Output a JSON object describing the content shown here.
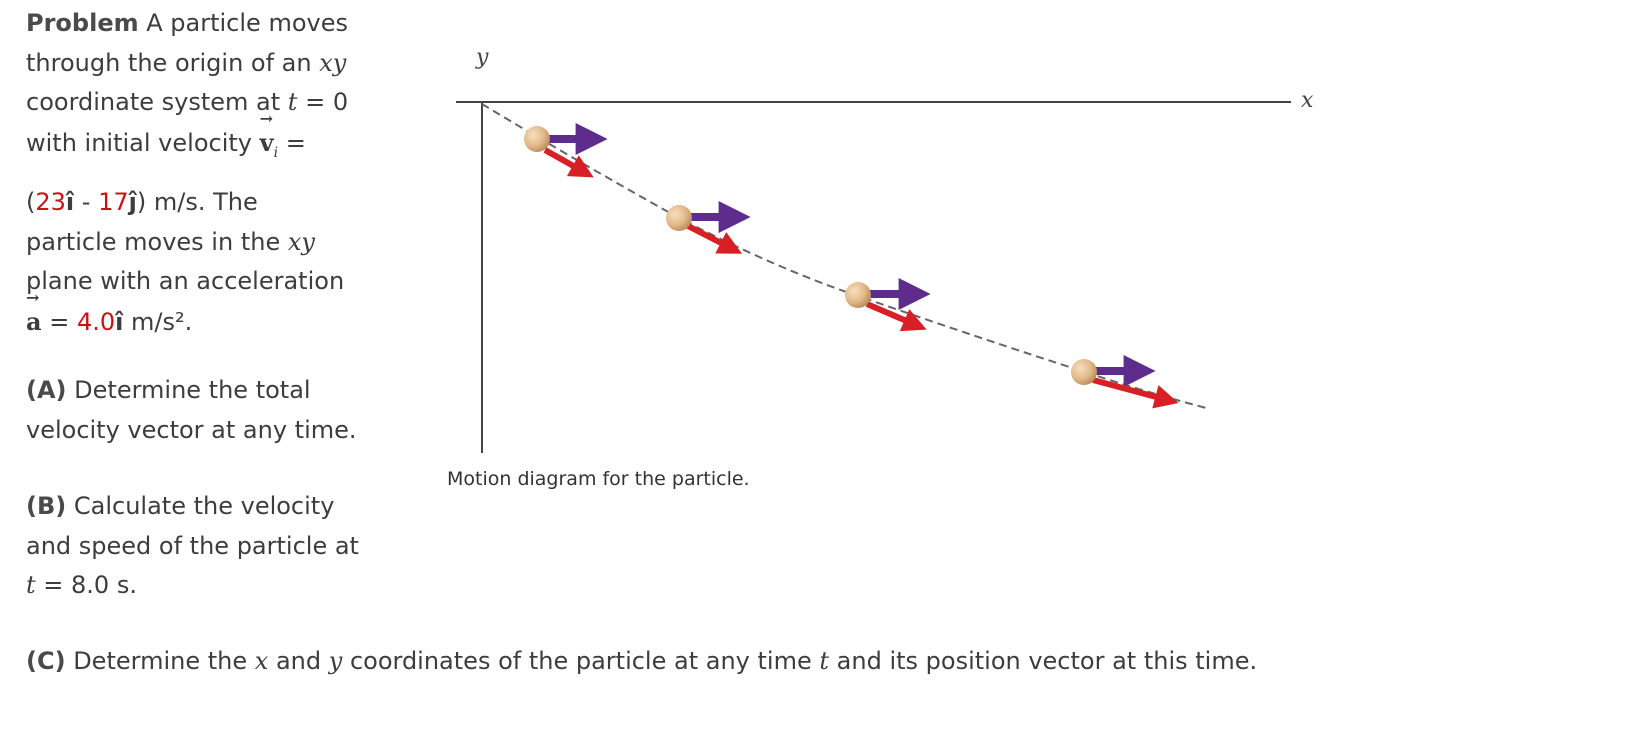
{
  "problem": {
    "label": "Problem",
    "l1": "A particle moves",
    "l2": "through the origin of an",
    "xy": "xy",
    "l3": "coordinate system at",
    "t": "t",
    "eq0": "= 0",
    "l4": "with initial velocity",
    "v": "v",
    "i_sub": "i",
    "eq": "=",
    "paren_open": "(",
    "v_x": "23",
    "ihat": "î",
    "minus": "-",
    "v_y": "17",
    "jhat": "ĵ",
    "l5_end": ") m/s. The",
    "l6": "particle moves in the",
    "l7": "plane with an acceleration",
    "a": "a",
    "a_eq": "=",
    "a_val": "4.0",
    "a_unit": "m/s².",
    "vec_arrow": "⃗"
  },
  "part_a": {
    "label": "(A)",
    "l1": "Determine the total",
    "l2": "velocity vector at any time."
  },
  "part_b": {
    "label": "(B)",
    "l1": "Calculate the velocity",
    "l2": "and speed of the particle at",
    "t": "t",
    "l3": "= 8.0 s."
  },
  "part_c": {
    "label": "(C)",
    "p1": "Determine the",
    "x": "x",
    "and": "and",
    "y": "y",
    "p2": "coordinates of the particle at any time",
    "t": "t",
    "p3": "and its position vector at this time."
  },
  "diagram": {
    "x_axis_label": "x",
    "y_axis_label": "y",
    "caption": "Motion diagram for the particle.",
    "colors": {
      "ball": "#e2b989",
      "velocity_x_arrow": "#5e2c8c",
      "velocity_arrow": "#d91f26",
      "axes": "#444444",
      "path": "#666666"
    }
  }
}
